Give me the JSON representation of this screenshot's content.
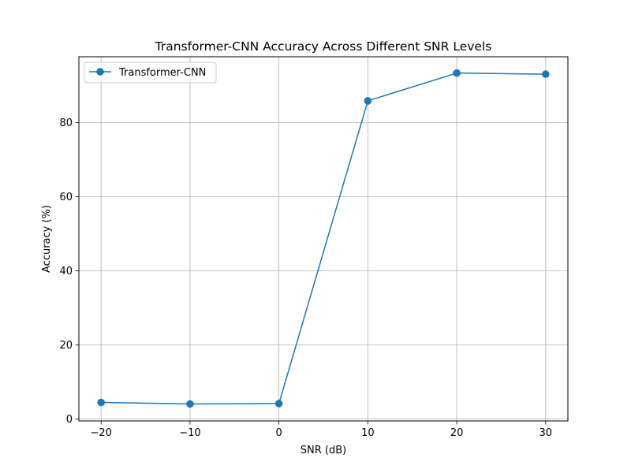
{
  "chart_data": {
    "type": "line",
    "title": "Transformer-CNN Accuracy Across Different SNR Levels",
    "xlabel": "SNR (dB)",
    "ylabel": "Accuracy (%)",
    "x": [
      -20,
      -10,
      0,
      10,
      20,
      30
    ],
    "x_ticks": [
      -20,
      -10,
      0,
      10,
      20,
      30
    ],
    "y_ticks": [
      0,
      20,
      40,
      60,
      80
    ],
    "xlim": [
      -22.5,
      32.5
    ],
    "ylim": [
      -0.5,
      97.8
    ],
    "grid": true,
    "legend_position": "top-left",
    "series": [
      {
        "name": "Transformer-CNN",
        "values": [
          4.5,
          4.1,
          4.2,
          85.9,
          93.4,
          93.1
        ],
        "color": "#1f77b4",
        "marker": "circle"
      }
    ]
  }
}
